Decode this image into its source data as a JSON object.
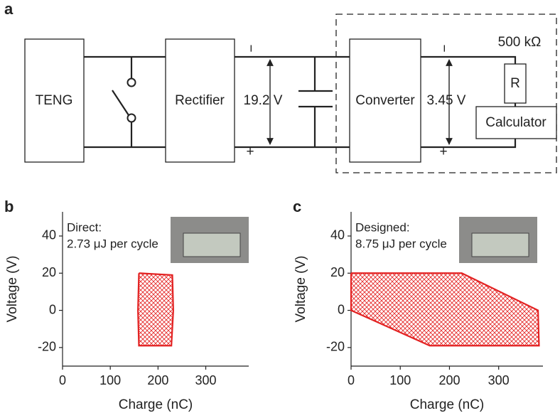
{
  "diagram": {
    "panel_label": "a",
    "teng": "TENG",
    "rectifier": "Rectifier",
    "voltage_1": "19.2 V",
    "converter": "Converter",
    "voltage_2": "3.45 V",
    "resistance": "500 kΩ",
    "resistor": "R",
    "calculator": "Calculator",
    "minus_1": "−",
    "plus_1": "+",
    "minus_2": "−",
    "plus_2": "+"
  },
  "chart_data": [
    {
      "type": "line",
      "panel_label": "b",
      "x_label": "Charge (nC)",
      "y_label": "Voltage (V)",
      "annotations": [
        "Direct:",
        "2.73 μJ per cycle"
      ],
      "xlim": [
        0,
        390
      ],
      "xticks": [
        0,
        100,
        200,
        300
      ],
      "ylim": [
        -30,
        53
      ],
      "yticks": [
        -20,
        0,
        20,
        40
      ],
      "series": [
        {
          "color": "#e32222",
          "x": [
            160,
            230,
            232,
            228,
            160,
            158,
            160
          ],
          "values": [
            20,
            19,
            0,
            -19,
            -19,
            0,
            20
          ]
        }
      ]
    },
    {
      "type": "line",
      "panel_label": "c",
      "x_label": "Charge (nC)",
      "y_label": "Voltage (V)",
      "annotations": [
        "Designed:",
        "8.75 μJ per cycle"
      ],
      "xlim": [
        0,
        390
      ],
      "xticks": [
        0,
        100,
        200,
        300
      ],
      "ylim": [
        -30,
        53
      ],
      "yticks": [
        -20,
        0,
        20,
        40
      ],
      "series": [
        {
          "color": "#e32222",
          "x": [
            0,
            225,
            380,
            382,
            160,
            0,
            0
          ],
          "values": [
            20,
            20,
            0,
            -19,
            -19,
            0,
            20
          ]
        }
      ]
    }
  ]
}
